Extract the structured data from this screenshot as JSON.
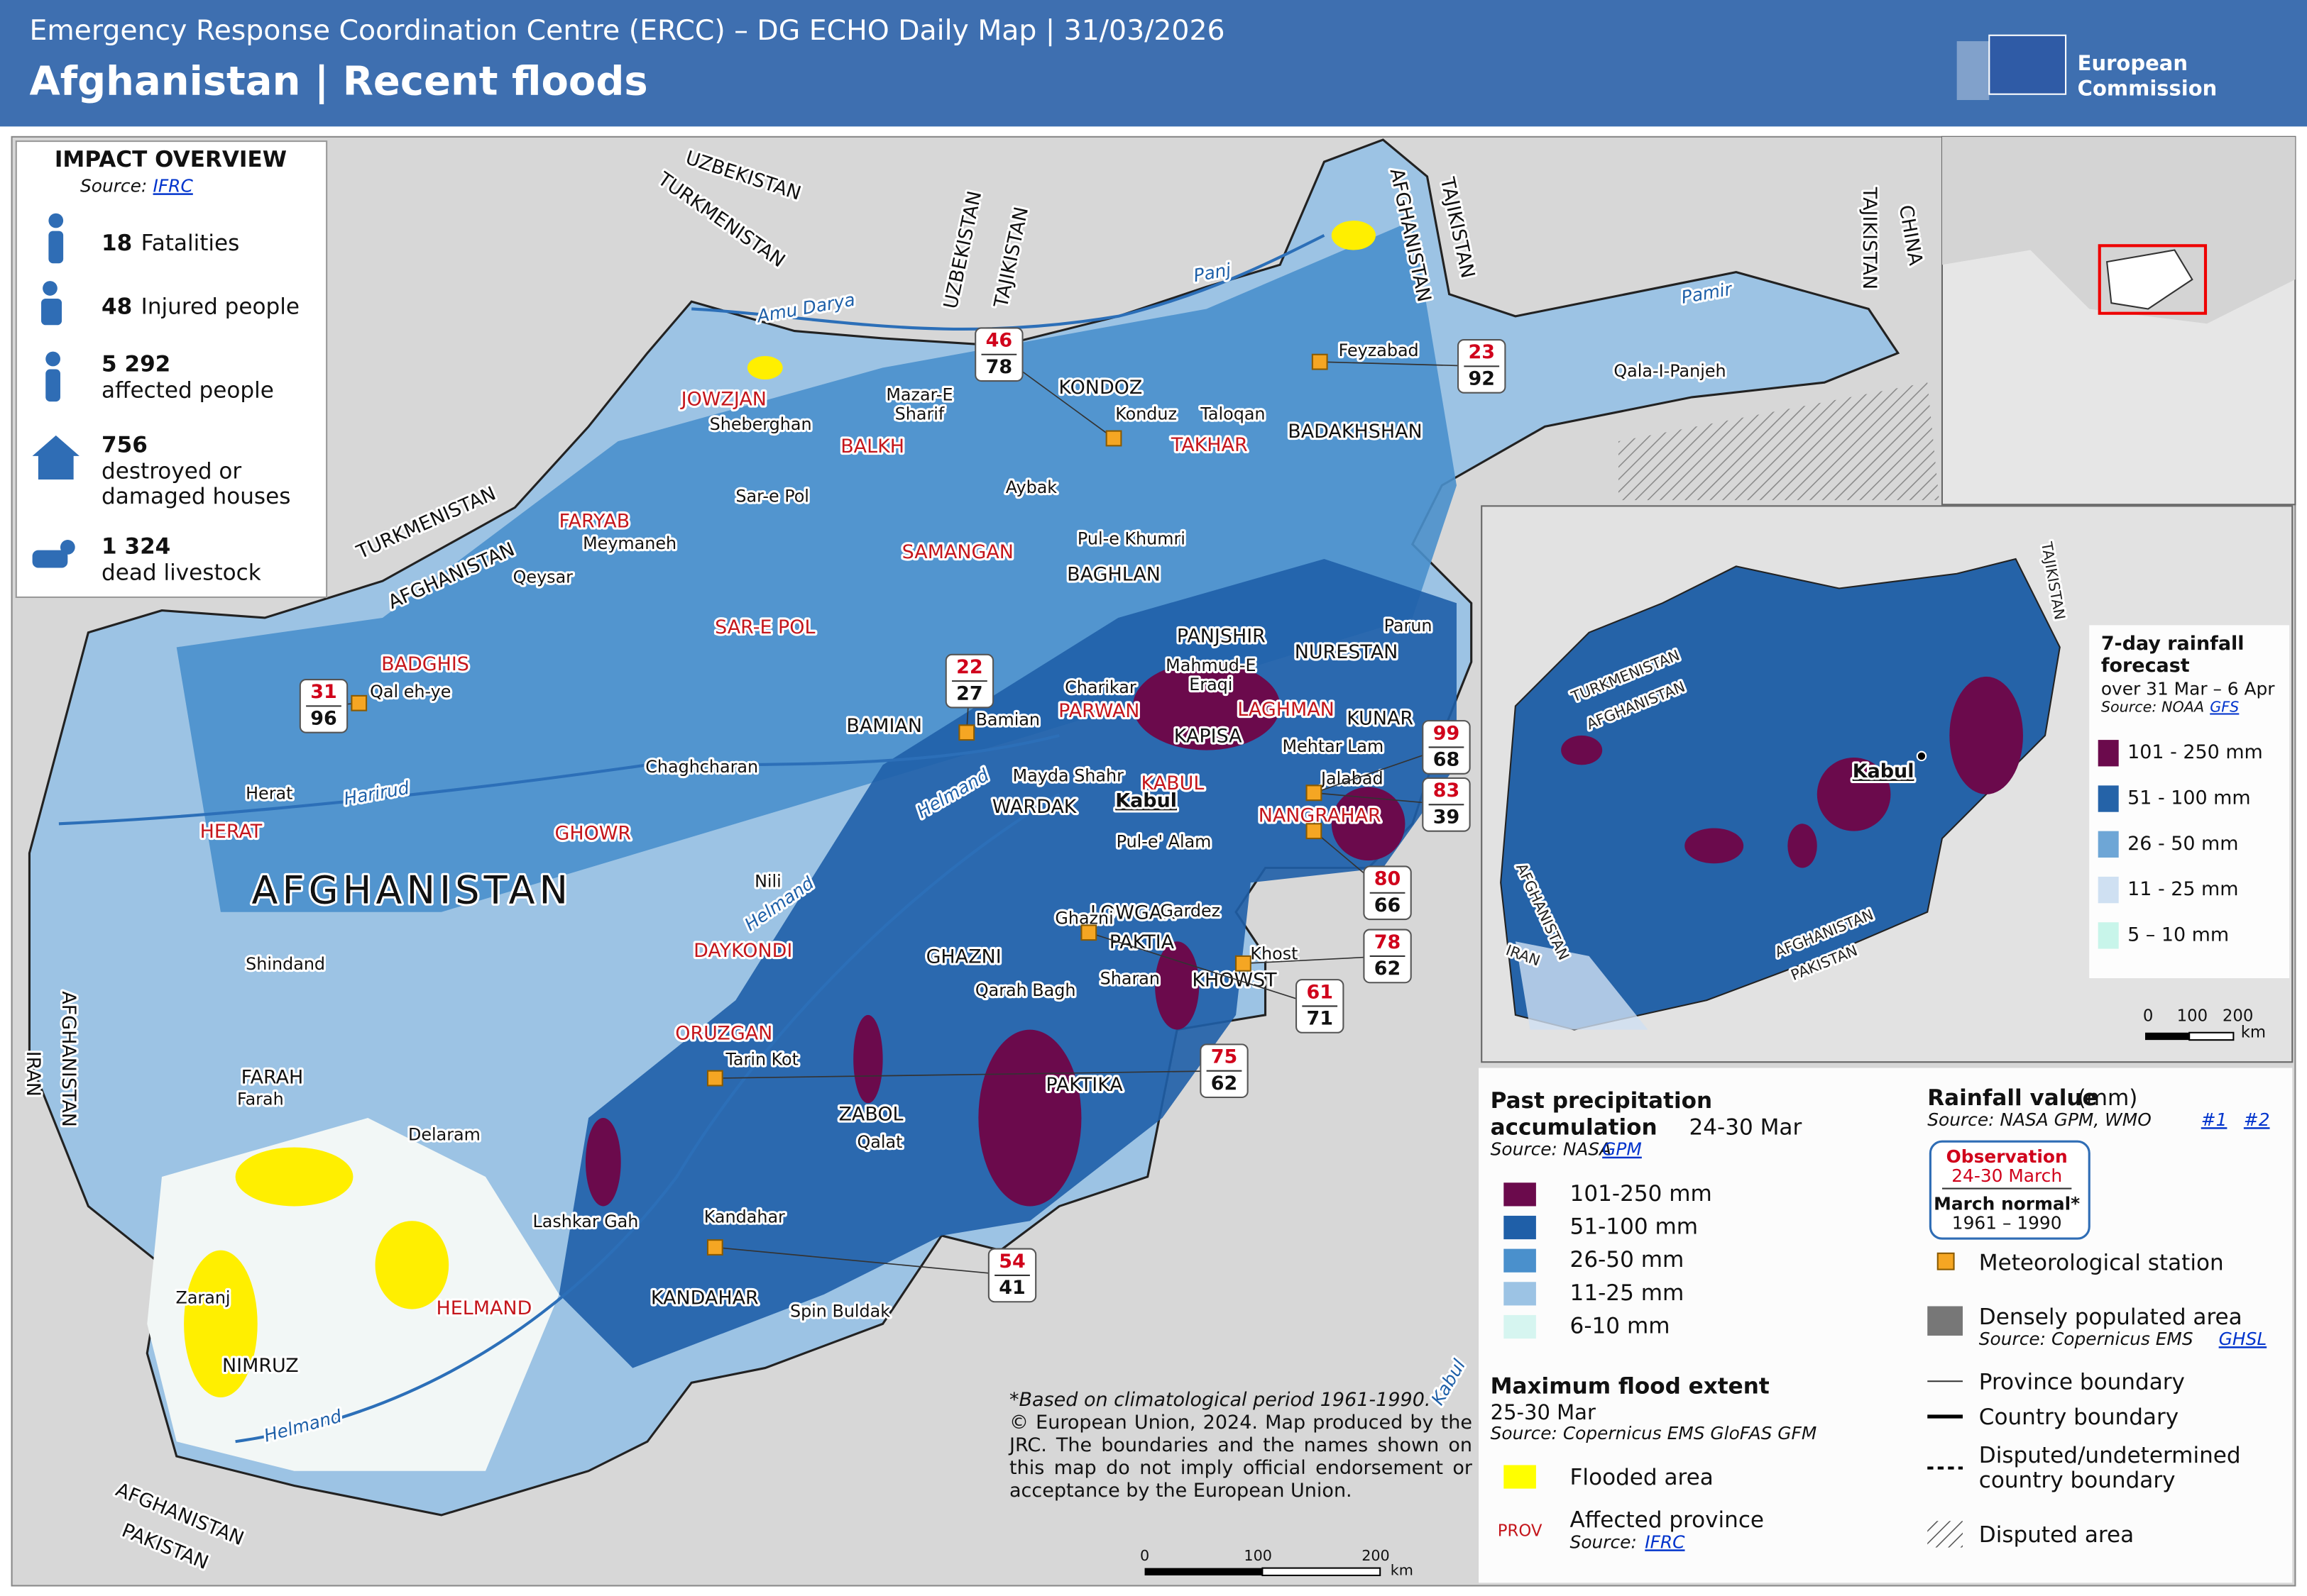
{
  "header": {
    "subtitle": "Emergency Response Coordination Centre (ERCC) – DG ECHO Daily Map | 31/03/2026",
    "title": "Afghanistan | Recent floods",
    "logo": [
      "European",
      "Commission"
    ]
  },
  "impact": {
    "title": "IMPACT OVERVIEW",
    "source_label": "Source:",
    "source_link": "IFRC",
    "items": [
      {
        "value": "18",
        "label": [
          "Fatalities"
        ]
      },
      {
        "value": "48",
        "label": [
          "Injured people"
        ]
      },
      {
        "value": "5 292",
        "label": [
          "affected people"
        ]
      },
      {
        "value": "756",
        "label": [
          "destroyed or",
          "damaged houses"
        ]
      },
      {
        "value": "1 324",
        "label": [
          "dead livestock"
        ]
      }
    ]
  },
  "map": {
    "affected_provinces": [
      "JOWZJAN",
      "BALKH",
      "FARYAB",
      "SAMANGAN",
      "SAR-E POL",
      "BADGHIS",
      "HERAT",
      "GHOWR",
      "DAYKONDI",
      "ORUZGAN",
      "HELMAND",
      "TAKHAR",
      "PARWAN",
      "LAGHMAN",
      "KABUL",
      "NANGRAHAR"
    ],
    "other_provinces": [
      "KONDOZ",
      "BADAKHSHAN",
      "BAGHLAN",
      "PANJSHIR",
      "NURESTAN",
      "KAPISA",
      "KUNAR",
      "WARDAK",
      "BAMIAN",
      "LOWGAR",
      "PAKTIA",
      "GHAZNI",
      "KHOWST",
      "PAKTIKA",
      "ZABOL",
      "KANDAHAR",
      "FARAH",
      "NIMRUZ"
    ],
    "cities": [
      "Sheberghan",
      [
        "Mazar-E",
        "Sharif"
      ],
      "Konduz",
      "Taloqan",
      "Feyzabad",
      "Sar-e Pol",
      "Aybak",
      "Pul-e Khumri",
      "Meymaneh",
      "Qeysar",
      "Qal eh-ye",
      "Charikar",
      [
        "Mahmud-E",
        "Eraqi"
      ],
      "Parun",
      "Bamian",
      "Chaghcharan",
      "Herat",
      "Mehtar Lam",
      "Jalabad",
      "Mayda Shahr",
      "Pul-e' Alam",
      "Nili",
      "Gardez",
      "Ghazni",
      "Khost",
      "Sharan",
      "Qarah Bagh",
      "Shindand",
      "Tarin Kot",
      "Farah",
      "Qalat",
      "Delaram",
      "Lashkar Gah",
      "Kandahar",
      "Spin Buldak",
      "Zaranj",
      "Qala-I-Panjeh"
    ],
    "capital": "Kabul",
    "country_name": "AFGHANISTAN",
    "countries": [
      "UZBEKISTAN",
      "TURKMENISTAN",
      "TURKMENISTAN",
      "AFGHANISTAN",
      "UZBEKISTAN",
      "TAJIKISTAN",
      "AFGHANISTAN",
      "TAJIKISTAN",
      "TAJIKISTAN",
      "CHINA",
      "AFGHANISTAN",
      "IRAN",
      "AFGHANISTAN",
      "PAKISTAN"
    ],
    "rivers": [
      "Amu Darya",
      "Panj",
      "Pamir",
      "Harirud",
      "Helmand",
      "Helmand",
      "Helmand",
      "Kabul"
    ],
    "stations": [
      {
        "obs": 46,
        "normal": 78
      },
      {
        "obs": 23,
        "normal": 92
      },
      {
        "obs": 31,
        "normal": 96
      },
      {
        "obs": 22,
        "normal": 27
      },
      {
        "obs": 99,
        "normal": 68
      },
      {
        "obs": 83,
        "normal": 39
      },
      {
        "obs": 80,
        "normal": 66
      },
      {
        "obs": 78,
        "normal": 62
      },
      {
        "obs": 61,
        "normal": 71
      },
      {
        "obs": 75,
        "normal": 62
      },
      {
        "obs": 54,
        "normal": 41
      }
    ],
    "scale": [
      "0",
      "100",
      "200",
      "km"
    ]
  },
  "inset": {
    "countries": [
      "TURKMENISTAN",
      "AFGHANISTAN",
      "TAJIKISTAN",
      "AFGHANISTAN",
      "IRAN",
      "AFGHANISTAN",
      "PAKISTAN"
    ],
    "capital": "Kabul",
    "legend": {
      "title": [
        "7-day rainfall",
        "forecast"
      ],
      "period": "over 31 Mar – 6 Apr",
      "source_label": "Source: NOAA",
      "source_link": "GFS",
      "classes": [
        {
          "label": "101 - 250 mm",
          "color": "#6b0a4c"
        },
        {
          "label": "51 - 100 mm",
          "color": "#2563a8"
        },
        {
          "label": "26 - 50 mm",
          "color": "#6ea6d6"
        },
        {
          "label": "11 - 25 mm",
          "color": "#cfe0f2"
        },
        {
          "label": "5 – 10 mm",
          "color": "#c8f5ea"
        }
      ]
    },
    "scale": [
      "0",
      "100",
      "200",
      "km"
    ]
  },
  "legend": {
    "precip": {
      "title": [
        "Past precipitation",
        "accumulation"
      ],
      "period": "24-30 Mar",
      "source_label": "Source: NASA",
      "source_link": "GPM",
      "classes": [
        {
          "label": "101-250 mm",
          "color": "#6b0a4c"
        },
        {
          "label": "51-100 mm",
          "color": "#1f5fa8"
        },
        {
          "label": "26-50 mm",
          "color": "#4a90cc"
        },
        {
          "label": "11-25 mm",
          "color": "#9cc3e4"
        },
        {
          "label": "6-10 mm",
          "color": "#d6f5f0"
        }
      ]
    },
    "flood": {
      "title": "Maximum flood extent",
      "period": "25-30 Mar",
      "source": "Source:  Copernicus EMS GloFAS GFM",
      "flooded": "Flooded area",
      "flooded_color": "#ffff00",
      "prov_sample": "PROV",
      "affected": "Affected province",
      "affected_source_label": "Source:",
      "affected_source_link": "IFRC"
    },
    "rainfall": {
      "title": "Rainfall value",
      "unit": "(mm)",
      "source_label": "Source: NASA GPM, WMO",
      "link1": "#1",
      "link2": "#2",
      "obs_title": "Observation",
      "obs_period": "24-30 March",
      "normal_title": "March normal*",
      "normal_period": "1961 – 1990",
      "station": "Meteorological station",
      "populated": "Densely populated area",
      "populated_source_label": "Source:  Copernicus EMS",
      "populated_source_link": "GHSL",
      "province_boundary": "Province boundary",
      "country_boundary": "Country boundary",
      "disputed_boundary": [
        "Disputed/undetermined",
        "country boundary"
      ],
      "disputed_area": "Disputed area"
    }
  },
  "disclaimer": {
    "note": "*Based on climatological period 1961-1990.",
    "text": "© European Union, 2024. Map produced by the JRC. The boundaries and the names shown on this map do not imply official endorsement or acceptance by the European Union."
  }
}
